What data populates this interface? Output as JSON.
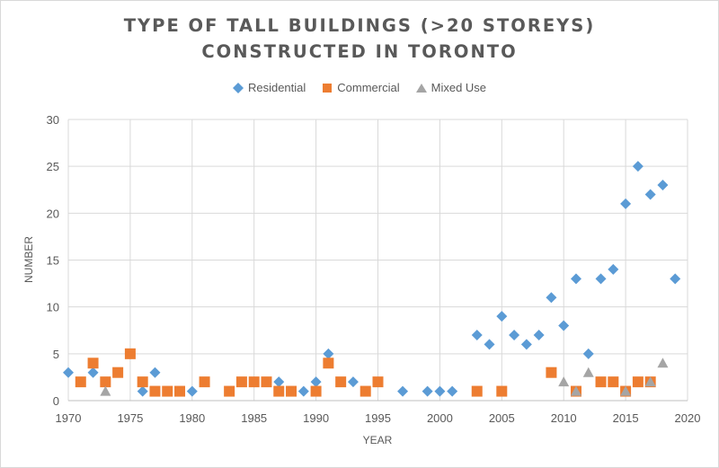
{
  "chart_data": {
    "type": "scatter",
    "title_lines": [
      "TYPE OF TALL BUILDINGS (>20 STOREYS)",
      "CONSTRUCTED IN TORONTO"
    ],
    "xlabel": "YEAR",
    "ylabel": "NUMBER",
    "xlim": [
      1970,
      2020
    ],
    "ylim": [
      0,
      30
    ],
    "xticks": [
      1970,
      1975,
      1980,
      1985,
      1990,
      1995,
      2000,
      2005,
      2010,
      2015,
      2020
    ],
    "yticks": [
      0,
      5,
      10,
      15,
      20,
      25,
      30
    ],
    "grid": "vertical and horizontal major gridlines",
    "legend_position": "top",
    "series": [
      {
        "name": "Residential",
        "marker": "diamond",
        "color": "#5b9bd5",
        "points": [
          [
            1970,
            3
          ],
          [
            1972,
            3
          ],
          [
            1976,
            1
          ],
          [
            1977,
            3
          ],
          [
            1980,
            1
          ],
          [
            1987,
            2
          ],
          [
            1989,
            1
          ],
          [
            1990,
            2
          ],
          [
            1991,
            5
          ],
          [
            1993,
            2
          ],
          [
            1997,
            1
          ],
          [
            1999,
            1
          ],
          [
            2000,
            1
          ],
          [
            2001,
            1
          ],
          [
            2003,
            7
          ],
          [
            2004,
            6
          ],
          [
            2005,
            9
          ],
          [
            2006,
            7
          ],
          [
            2007,
            6
          ],
          [
            2008,
            7
          ],
          [
            2009,
            11
          ],
          [
            2010,
            8
          ],
          [
            2011,
            13
          ],
          [
            2012,
            5
          ],
          [
            2013,
            13
          ],
          [
            2014,
            14
          ],
          [
            2015,
            21
          ],
          [
            2016,
            25
          ],
          [
            2017,
            22
          ],
          [
            2018,
            23
          ],
          [
            2019,
            13
          ]
        ]
      },
      {
        "name": "Commercial",
        "marker": "square",
        "color": "#ed7d31",
        "points": [
          [
            1971,
            2
          ],
          [
            1972,
            4
          ],
          [
            1973,
            2
          ],
          [
            1974,
            3
          ],
          [
            1975,
            5
          ],
          [
            1976,
            2
          ],
          [
            1977,
            1
          ],
          [
            1978,
            1
          ],
          [
            1979,
            1
          ],
          [
            1981,
            2
          ],
          [
            1983,
            1
          ],
          [
            1984,
            2
          ],
          [
            1985,
            2
          ],
          [
            1986,
            2
          ],
          [
            1987,
            1
          ],
          [
            1988,
            1
          ],
          [
            1990,
            1
          ],
          [
            1991,
            4
          ],
          [
            1992,
            2
          ],
          [
            1994,
            1
          ],
          [
            1995,
            2
          ],
          [
            2003,
            1
          ],
          [
            2005,
            1
          ],
          [
            2009,
            3
          ],
          [
            2011,
            1
          ],
          [
            2013,
            2
          ],
          [
            2014,
            2
          ],
          [
            2015,
            1
          ],
          [
            2016,
            2
          ],
          [
            2017,
            2
          ]
        ]
      },
      {
        "name": "Mixed Use",
        "marker": "triangle",
        "color": "#a5a5a5",
        "points": [
          [
            1973,
            1
          ],
          [
            2010,
            2
          ],
          [
            2011,
            1
          ],
          [
            2012,
            3
          ],
          [
            2015,
            1
          ],
          [
            2017,
            2
          ],
          [
            2018,
            4
          ]
        ]
      }
    ]
  }
}
